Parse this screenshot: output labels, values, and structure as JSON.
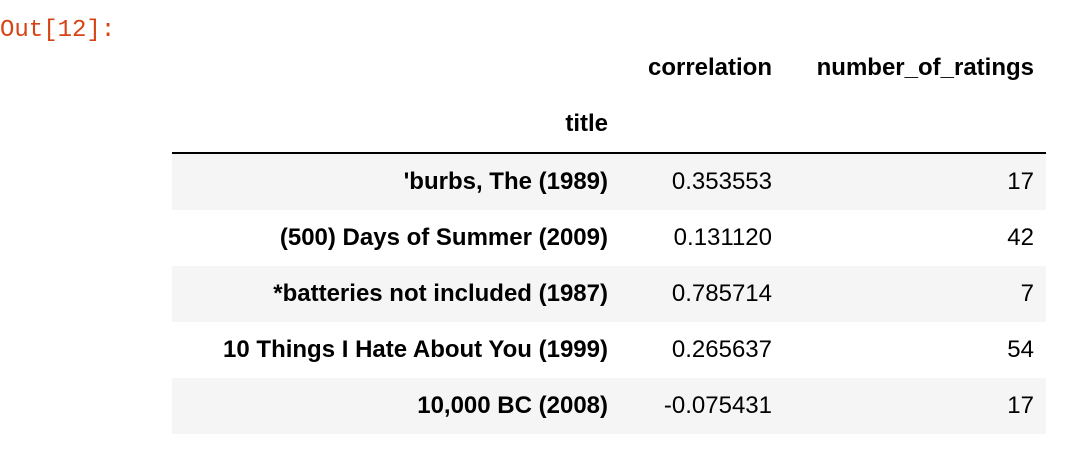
{
  "prompt": "Out[12]:",
  "table": {
    "columns": [
      "correlation",
      "number_of_ratings"
    ],
    "index_name": "title",
    "rows": [
      {
        "title": "'burbs, The (1989)",
        "correlation": "0.353553",
        "number_of_ratings": "17"
      },
      {
        "title": "(500) Days of Summer (2009)",
        "correlation": "0.131120",
        "number_of_ratings": "42"
      },
      {
        "title": "*batteries not included (1987)",
        "correlation": "0.785714",
        "number_of_ratings": "7"
      },
      {
        "title": "10 Things I Hate About You (1999)",
        "correlation": "0.265637",
        "number_of_ratings": "54"
      },
      {
        "title": "10,000 BC (2008)",
        "correlation": "-0.075431",
        "number_of_ratings": "17"
      }
    ]
  }
}
